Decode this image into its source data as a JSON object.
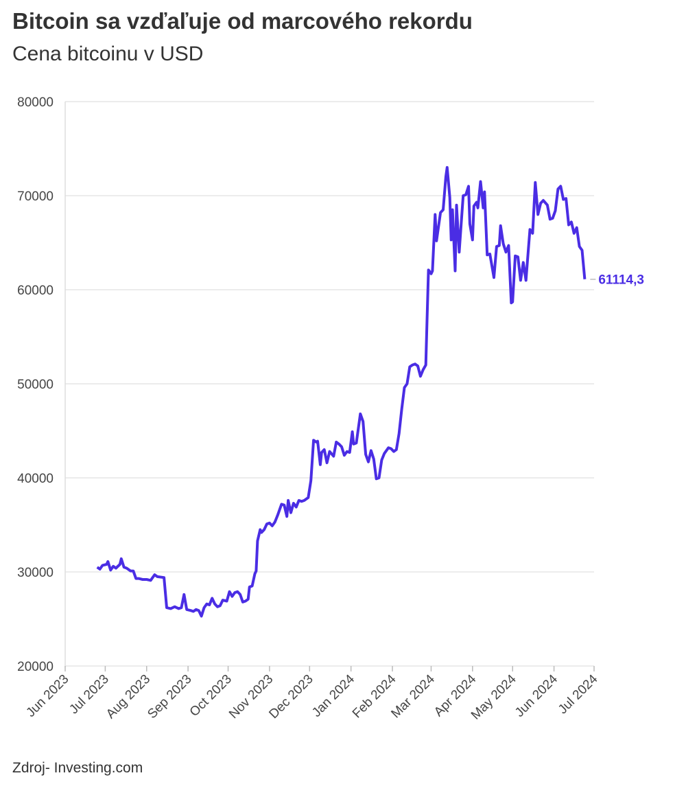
{
  "chart_data": {
    "type": "line",
    "title": "Bitcoin sa vzďaľuje od marcového rekordu",
    "subtitle": "Cena bitcoinu v USD",
    "source": "Zdroj- Investing.com",
    "end_label": "61114,3",
    "color": "#4a2de4",
    "grid": true,
    "xlim": [
      0,
      396
    ],
    "xticks": [
      {
        "value": 0,
        "label": "Jun 2023"
      },
      {
        "value": 30,
        "label": "Jul 2023"
      },
      {
        "value": 61,
        "label": "Aug 2023"
      },
      {
        "value": 92,
        "label": "Sep 2023"
      },
      {
        "value": 122,
        "label": "Oct 2023"
      },
      {
        "value": 153,
        "label": "Nov 2023"
      },
      {
        "value": 183,
        "label": "Dec 2023"
      },
      {
        "value": 214,
        "label": "Jan 2024"
      },
      {
        "value": 245,
        "label": "Feb 2024"
      },
      {
        "value": 274,
        "label": "Mar 2024"
      },
      {
        "value": 305,
        "label": "Apr 2024"
      },
      {
        "value": 335,
        "label": "May 2024"
      },
      {
        "value": 366,
        "label": "Jun 2024"
      },
      {
        "value": 396,
        "label": "Jul 2024"
      }
    ],
    "ylim": [
      20000,
      80000
    ],
    "yticks": [
      20000,
      30000,
      40000,
      50000,
      60000,
      70000,
      80000
    ],
    "x": [
      24,
      26,
      28,
      31,
      32,
      34,
      36,
      38,
      41,
      42,
      44,
      46,
      49,
      51,
      53,
      55,
      58,
      61,
      64,
      67,
      69,
      74,
      76,
      79,
      82,
      85,
      87,
      89,
      91,
      94,
      96,
      98,
      100,
      102,
      104,
      106,
      108,
      110,
      112,
      114,
      116,
      118,
      121,
      123,
      125,
      127,
      129,
      131,
      133,
      135,
      137,
      138,
      140,
      142,
      143,
      144,
      146,
      147,
      149,
      151,
      153,
      155,
      157,
      159,
      162,
      164,
      166,
      167,
      169,
      171,
      173,
      175,
      177,
      179,
      182,
      184,
      186,
      188,
      189,
      191,
      192,
      194,
      196,
      198,
      201,
      203,
      205,
      207,
      209,
      211,
      213,
      215,
      216,
      218,
      221,
      223,
      225,
      227,
      229,
      231,
      233,
      235,
      237,
      239,
      242,
      244,
      246,
      248,
      250,
      252,
      254,
      256,
      258,
      260,
      262,
      264,
      266,
      268,
      270,
      271,
      272,
      274,
      275,
      277,
      278,
      281,
      283,
      285,
      286,
      288,
      289,
      290,
      292,
      293,
      295,
      296,
      298,
      300,
      302,
      303,
      305,
      306,
      308,
      309,
      311,
      313,
      314,
      316,
      318,
      321,
      323,
      325,
      326,
      328,
      330,
      332,
      334,
      335,
      337,
      339,
      341,
      343,
      345,
      346,
      348,
      350,
      352,
      354,
      356,
      358,
      361,
      363,
      365,
      367,
      369,
      371,
      373,
      375,
      377,
      379,
      381,
      383,
      385,
      387,
      389
    ],
    "values": [
      30500,
      30300,
      30700,
      30800,
      31100,
      30200,
      30600,
      30400,
      30800,
      31400,
      30500,
      30400,
      30100,
      30100,
      29300,
      29300,
      29200,
      29200,
      29100,
      29700,
      29500,
      29400,
      26200,
      26100,
      26300,
      26100,
      26200,
      27600,
      26000,
      25900,
      25800,
      26000,
      25900,
      25300,
      26200,
      26600,
      26500,
      27200,
      26600,
      26300,
      26400,
      27000,
      26900,
      27900,
      27400,
      27800,
      27900,
      27600,
      26800,
      26900,
      27100,
      28400,
      28500,
      29800,
      30100,
      33300,
      34500,
      34200,
      34500,
      35100,
      35200,
      34900,
      35300,
      36000,
      37200,
      37100,
      35900,
      37600,
      36300,
      37300,
      36900,
      37600,
      37500,
      37600,
      37900,
      39700,
      44000,
      43800,
      43900,
      41400,
      42700,
      43000,
      41600,
      42800,
      42300,
      43800,
      43600,
      43300,
      42400,
      42800,
      42700,
      44900,
      43600,
      43700,
      46800,
      46000,
      42500,
      41700,
      42900,
      42000,
      39900,
      40000,
      41900,
      42600,
      43200,
      43100,
      42800,
      43000,
      44700,
      47300,
      49600,
      50000,
      51800,
      52000,
      52100,
      51900,
      50800,
      51500,
      52000,
      57000,
      62100,
      61700,
      62000,
      68000,
      65200,
      68200,
      68500,
      72000,
      73000,
      69800,
      65300,
      68500,
      62000,
      69000,
      64000,
      66000,
      70000,
      70100,
      71000,
      67000,
      65300,
      68900,
      69300,
      68700,
      71500,
      68700,
      70400,
      63700,
      63800,
      61300,
      64600,
      64700,
      66800,
      64900,
      64000,
      64700,
      58600,
      58700,
      63600,
      63500,
      61000,
      62900,
      61000,
      62900,
      66400,
      66000,
      71400,
      68000,
      69200,
      69500,
      69000,
      67500,
      67600,
      68400,
      70700,
      71000,
      69600,
      69700,
      66900,
      67200,
      66000,
      66600,
      64600,
      64200,
      61114.3
    ]
  }
}
